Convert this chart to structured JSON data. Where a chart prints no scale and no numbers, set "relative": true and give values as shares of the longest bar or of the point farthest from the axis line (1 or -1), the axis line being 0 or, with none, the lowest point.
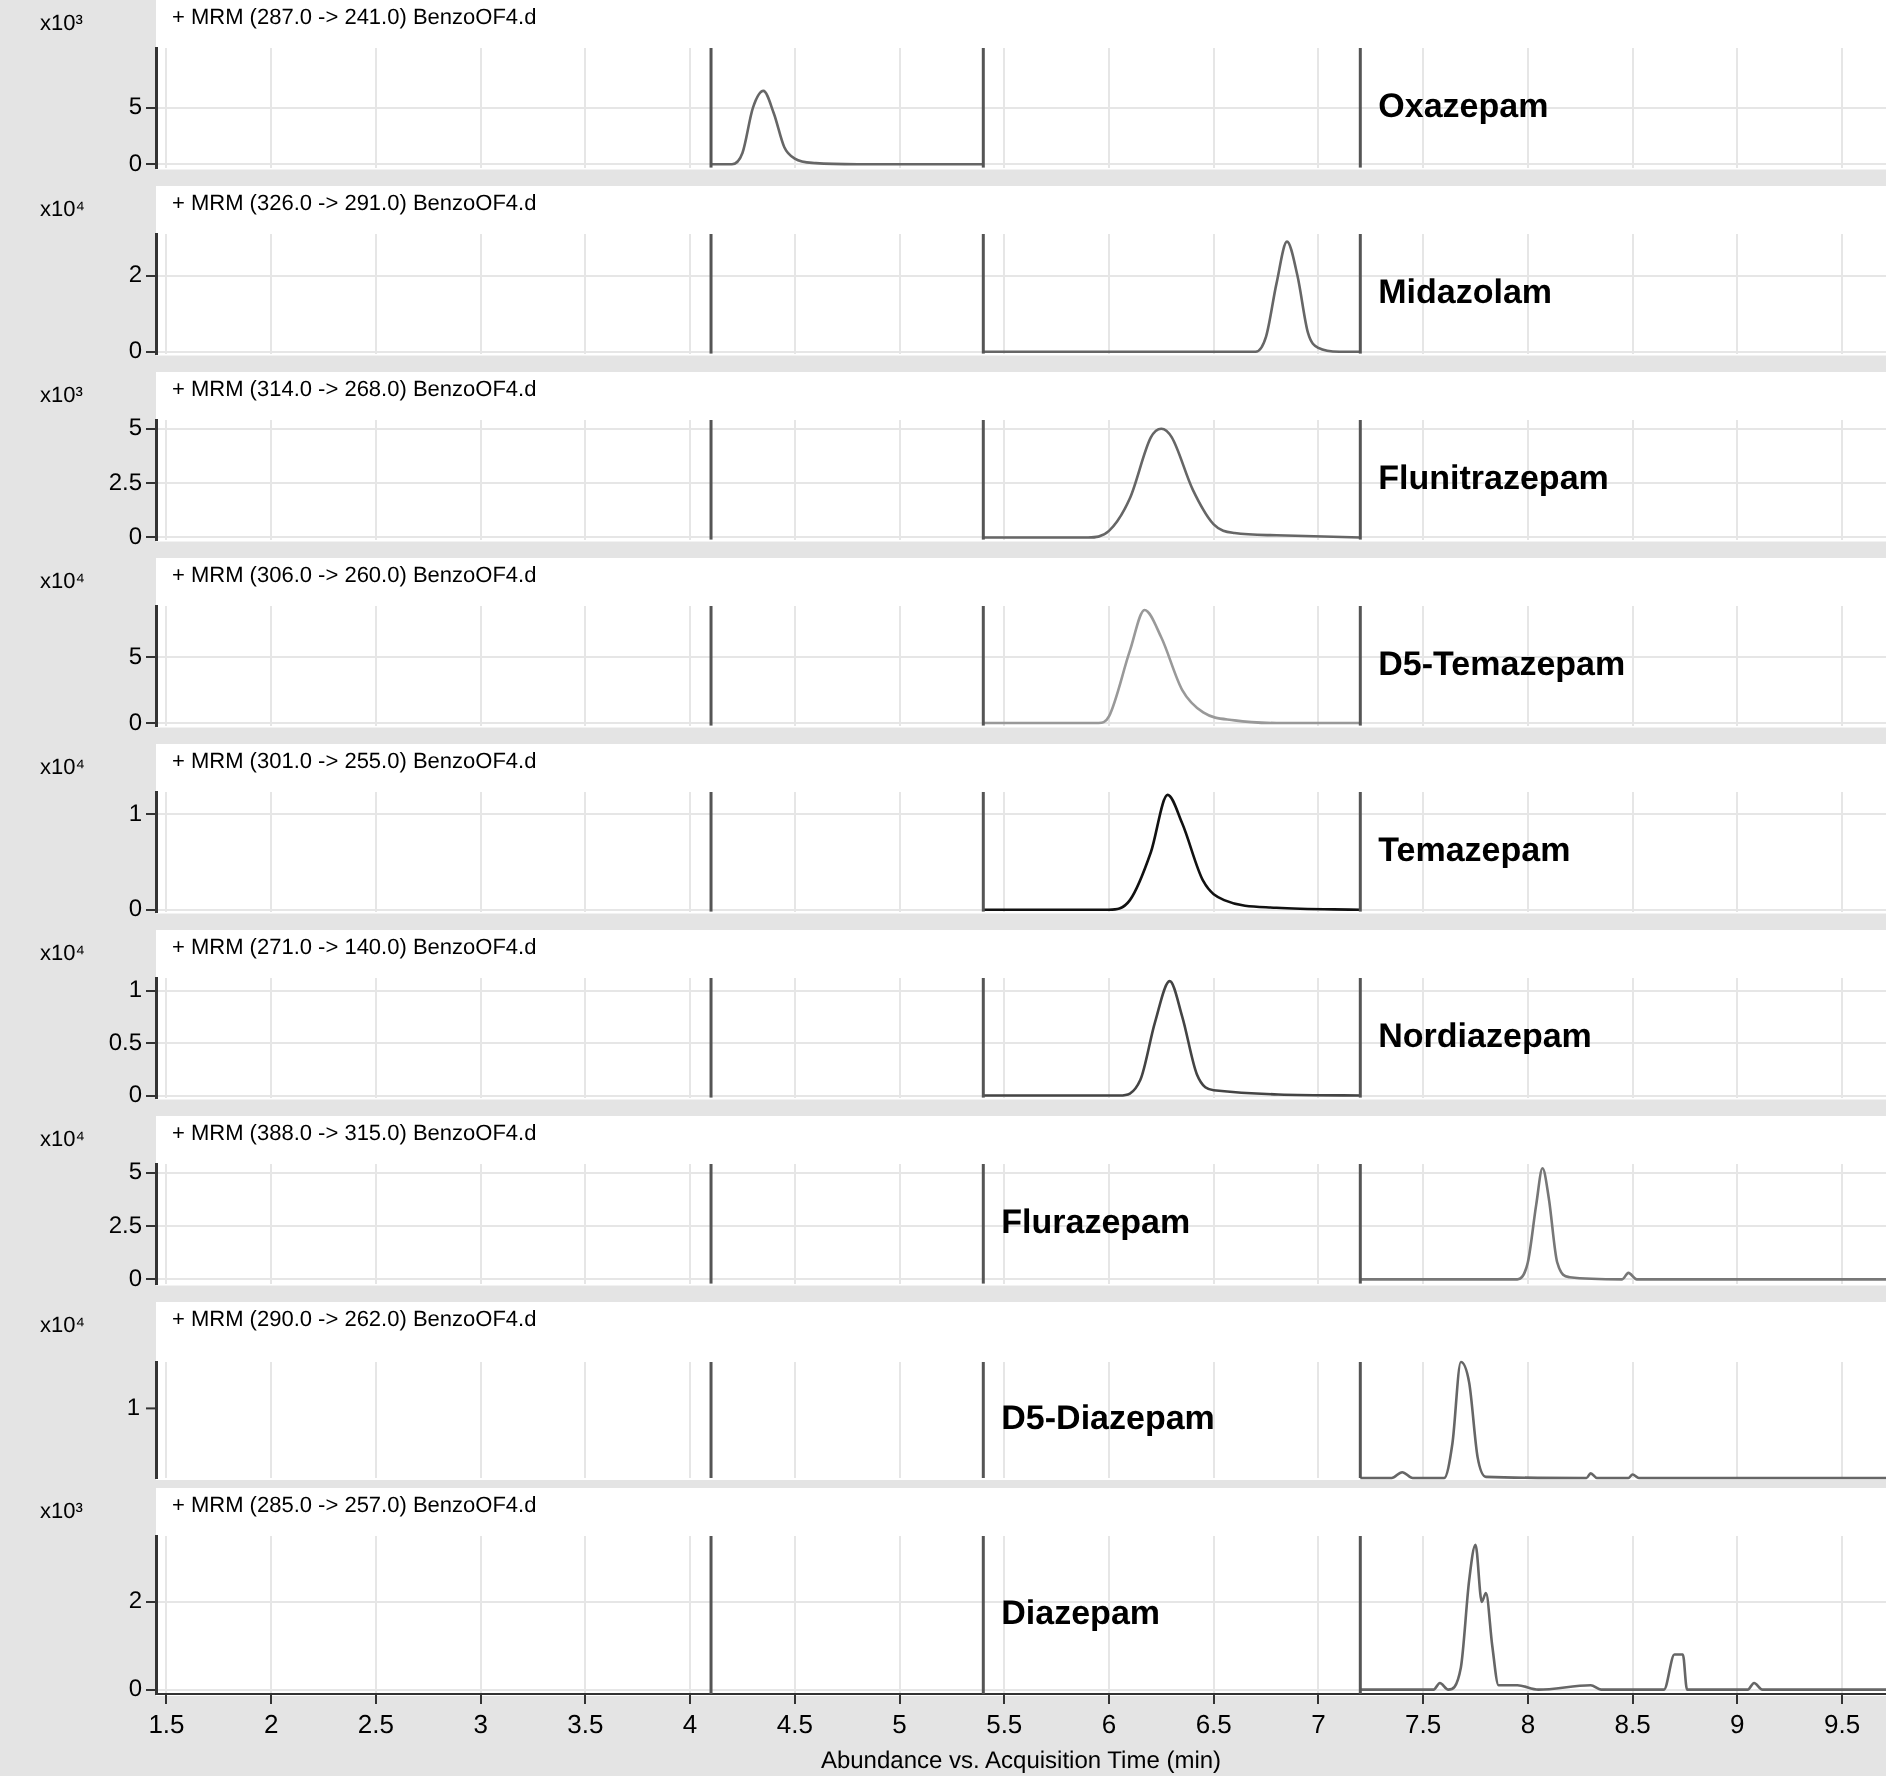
{
  "chart_data": [
    {
      "type": "line",
      "title": "+ MRM (287.0 -> 241.0) BenzoOF4.d",
      "ylabel": "x10³",
      "annotations": [
        "Oxazepam"
      ],
      "x": [
        4.1,
        4.2,
        4.25,
        4.3,
        4.35,
        4.4,
        4.45,
        4.5,
        4.6,
        4.8,
        5.4
      ],
      "series": [
        {
          "color": "#666666",
          "values": [
            0,
            0,
            1,
            5,
            6.5,
            4.5,
            1.5,
            0.5,
            0.1,
            0,
            0
          ]
        }
      ],
      "xlim": [
        1.45,
        9.71
      ],
      "xticks": [
        1.5,
        2,
        2.5,
        3,
        3.5,
        4,
        4.5,
        5,
        5.5,
        6,
        6.5,
        7,
        7.5,
        8,
        8.5,
        9,
        9.5
      ],
      "ylim": [
        -0.3,
        10.3
      ],
      "yticks": [
        0,
        5
      ],
      "grid": true,
      "tick_labels": "y",
      "marker": "none",
      "ref_lines": [
        {
          "axis": "x",
          "value": 4.1,
          "color": "#555555"
        },
        {
          "axis": "x",
          "value": 5.4,
          "color": "#555555"
        },
        {
          "axis": "x",
          "value": 7.2,
          "color": "#555555"
        }
      ]
    },
    {
      "type": "line",
      "title": "+ MRM (326.0 -> 291.0) BenzoOF4.d",
      "ylabel": "x10⁴",
      "annotations": [
        "Midazolam"
      ],
      "x": [
        5.4,
        6.7,
        6.75,
        6.8,
        6.85,
        6.9,
        6.95,
        7.0,
        7.1,
        7.2
      ],
      "series": [
        {
          "color": "#666666",
          "values": [
            0,
            0,
            0.4,
            1.8,
            2.9,
            2.0,
            0.5,
            0.1,
            0,
            0
          ]
        }
      ],
      "xlim": [
        1.45,
        9.71
      ],
      "xticks": [
        1.5,
        2,
        2.5,
        3,
        3.5,
        4,
        4.5,
        5,
        5.5,
        6,
        6.5,
        7,
        7.5,
        8,
        8.5,
        9,
        9.5
      ],
      "ylim": [
        -0.05,
        3.1
      ],
      "yticks": [
        0,
        2
      ],
      "grid": true,
      "tick_labels": "y",
      "marker": "none",
      "ref_lines": [
        {
          "axis": "x",
          "value": 4.1,
          "color": "#555555"
        },
        {
          "axis": "x",
          "value": 5.4,
          "color": "#555555"
        },
        {
          "axis": "x",
          "value": 7.2,
          "color": "#555555"
        }
      ]
    },
    {
      "type": "line",
      "title": "+ MRM (314.0 -> 268.0) BenzoOF4.d",
      "ylabel": "x10³",
      "annotations": [
        "Flunitrazepam"
      ],
      "x": [
        5.4,
        5.9,
        6.0,
        6.1,
        6.2,
        6.25,
        6.3,
        6.4,
        6.5,
        6.6,
        6.8,
        7.2
      ],
      "series": [
        {
          "color": "#666666",
          "values": [
            0,
            0,
            0.3,
            1.8,
            4.6,
            5.0,
            4.6,
            2.2,
            0.6,
            0.2,
            0.1,
            0
          ]
        }
      ],
      "xlim": [
        1.45,
        9.71
      ],
      "xticks": [
        1.5,
        2,
        2.5,
        3,
        3.5,
        4,
        4.5,
        5,
        5.5,
        6,
        6.5,
        7,
        7.5,
        8,
        8.5,
        9,
        9.5
      ],
      "ylim": [
        -0.1,
        5.4
      ],
      "yticks": [
        0,
        2.5,
        5
      ],
      "grid": true,
      "tick_labels": "y",
      "marker": "none",
      "ref_lines": [
        {
          "axis": "x",
          "value": 4.1,
          "color": "#555555"
        },
        {
          "axis": "x",
          "value": 5.4,
          "color": "#555555"
        },
        {
          "axis": "x",
          "value": 7.2,
          "color": "#555555"
        }
      ]
    },
    {
      "type": "line",
      "title": "+ MRM (306.0 -> 260.0) BenzoOF4.d",
      "ylabel": "x10⁴",
      "annotations": [
        "D5-Temazepam"
      ],
      "x": [
        5.4,
        5.95,
        6.0,
        6.1,
        6.17,
        6.25,
        6.35,
        6.45,
        6.6,
        6.8,
        7.2
      ],
      "series": [
        {
          "color": "#999999",
          "values": [
            0,
            0,
            0.5,
            5.5,
            8.6,
            6.5,
            2.5,
            0.8,
            0.2,
            0,
            0
          ]
        }
      ],
      "xlim": [
        1.45,
        9.71
      ],
      "xticks": [
        1.5,
        2,
        2.5,
        3,
        3.5,
        4,
        4.5,
        5,
        5.5,
        6,
        6.5,
        7,
        7.5,
        8,
        8.5,
        9,
        9.5
      ],
      "ylim": [
        -0.2,
        8.9
      ],
      "yticks": [
        0,
        5
      ],
      "grid": true,
      "tick_labels": "y",
      "marker": "none",
      "ref_lines": [
        {
          "axis": "x",
          "value": 4.1,
          "color": "#555555"
        },
        {
          "axis": "x",
          "value": 5.4,
          "color": "#555555"
        },
        {
          "axis": "x",
          "value": 7.2,
          "color": "#555555"
        }
      ]
    },
    {
      "type": "line",
      "title": "+ MRM (301.0 -> 255.0) BenzoOF4.d",
      "ylabel": "x10⁴",
      "annotations": [
        "Temazepam"
      ],
      "x": [
        5.4,
        6.0,
        6.1,
        6.2,
        6.28,
        6.35,
        6.45,
        6.55,
        6.8,
        7.2
      ],
      "series": [
        {
          "color": "#111111",
          "values": [
            0,
            0,
            0.1,
            0.6,
            1.2,
            0.9,
            0.3,
            0.1,
            0.02,
            0
          ]
        }
      ],
      "xlim": [
        1.45,
        9.71
      ],
      "xticks": [
        1.5,
        2,
        2.5,
        3,
        3.5,
        4,
        4.5,
        5,
        5.5,
        6,
        6.5,
        7,
        7.5,
        8,
        8.5,
        9,
        9.5
      ],
      "ylim": [
        -0.02,
        1.23
      ],
      "yticks": [
        0,
        1
      ],
      "grid": true,
      "tick_labels": "y",
      "marker": "none",
      "ref_lines": [
        {
          "axis": "x",
          "value": 4.1,
          "color": "#555555"
        },
        {
          "axis": "x",
          "value": 5.4,
          "color": "#555555"
        },
        {
          "axis": "x",
          "value": 7.2,
          "color": "#555555"
        }
      ]
    },
    {
      "type": "line",
      "title": "+ MRM (271.0 -> 140.0) BenzoOF4.d",
      "ylabel": "x10⁴",
      "annotations": [
        "Nordiazepam"
      ],
      "x": [
        5.4,
        6.05,
        6.15,
        6.22,
        6.29,
        6.35,
        6.42,
        6.5,
        7.2
      ],
      "series": [
        {
          "color": "#444444",
          "values": [
            0,
            0,
            0.15,
            0.7,
            1.09,
            0.75,
            0.2,
            0.05,
            0
          ]
        }
      ],
      "xlim": [
        1.45,
        9.71
      ],
      "xticks": [
        1.5,
        2,
        2.5,
        3,
        3.5,
        4,
        4.5,
        5,
        5.5,
        6,
        6.5,
        7,
        7.5,
        8,
        8.5,
        9,
        9.5
      ],
      "ylim": [
        -0.02,
        1.12
      ],
      "yticks": [
        0,
        0.5,
        1
      ],
      "grid": true,
      "tick_labels": "y",
      "marker": "none",
      "ref_lines": [
        {
          "axis": "x",
          "value": 4.1,
          "color": "#555555"
        },
        {
          "axis": "x",
          "value": 5.4,
          "color": "#555555"
        },
        {
          "axis": "x",
          "value": 7.2,
          "color": "#555555"
        }
      ]
    },
    {
      "type": "line",
      "title": "+ MRM (388.0 -> 315.0) BenzoOF4.d",
      "ylabel": "x10⁴",
      "annotations": [
        "Flurazepam"
      ],
      "x": [
        7.2,
        7.95,
        8.0,
        8.04,
        8.07,
        8.1,
        8.14,
        8.2,
        8.45,
        8.48,
        8.52,
        9.71
      ],
      "series": [
        {
          "color": "#777777",
          "values": [
            0,
            0,
            0.8,
            3.5,
            5.2,
            3.8,
            0.8,
            0.1,
            0,
            0.3,
            0,
            0
          ]
        }
      ],
      "xlim": [
        1.45,
        9.71
      ],
      "xticks": [
        1.5,
        2,
        2.5,
        3,
        3.5,
        4,
        4.5,
        5,
        5.5,
        6,
        6.5,
        7,
        7.5,
        8,
        8.5,
        9,
        9.5
      ],
      "ylim": [
        -0.2,
        5.4
      ],
      "yticks": [
        0,
        2.5,
        5
      ],
      "grid": true,
      "tick_labels": "y",
      "marker": "none",
      "ref_lines": [
        {
          "axis": "x",
          "value": 4.1,
          "color": "#555555"
        },
        {
          "axis": "x",
          "value": 5.4,
          "color": "#555555"
        },
        {
          "axis": "x",
          "value": 7.2,
          "color": "#555555"
        }
      ]
    },
    {
      "type": "line",
      "title": "+ MRM (290.0 -> 262.0) BenzoOF4.d",
      "ylabel": "x10⁴",
      "annotations": [
        "D5-Diazepam",
        "1"
      ],
      "x": [
        7.2,
        7.35,
        7.4,
        7.45,
        7.6,
        7.64,
        7.68,
        7.72,
        7.76,
        7.8,
        8.28,
        8.3,
        8.33,
        8.48,
        8.5,
        8.53,
        9.71
      ],
      "series": [
        {
          "color": "#666666",
          "values": [
            0,
            0,
            0.05,
            0,
            0,
            0.3,
            1,
            0.82,
            0.18,
            0.01,
            0,
            0.04,
            0,
            0,
            0.03,
            0,
            0
          ]
        }
      ],
      "xlim": [
        1.45,
        9.71
      ],
      "xticks": [
        1.5,
        2,
        2.5,
        3,
        3.5,
        4,
        4.5,
        5,
        5.5,
        6,
        6.5,
        7,
        7.5,
        8,
        8.5,
        9,
        9.5
      ],
      "relative": true,
      "grid": "x",
      "tick_labels": "y",
      "marker": "none",
      "ref_lines": [
        {
          "axis": "x",
          "value": 4.1,
          "color": "#555555"
        },
        {
          "axis": "x",
          "value": 5.4,
          "color": "#555555"
        },
        {
          "axis": "x",
          "value": 7.2,
          "color": "#555555"
        }
      ]
    },
    {
      "type": "line",
      "title": "+ MRM (285.0 -> 257.0) BenzoOF4.d",
      "ylabel": "x10³",
      "xlabel": "Abundance vs. Acquisition Time (min)",
      "annotations": [
        "Diazepam"
      ],
      "x": [
        7.2,
        7.55,
        7.58,
        7.62,
        7.68,
        7.72,
        7.75,
        7.78,
        7.8,
        7.83,
        7.86,
        7.95,
        8.05,
        8.3,
        8.35,
        8.65,
        8.7,
        8.74,
        8.76,
        9.05,
        9.08,
        9.12,
        9.71
      ],
      "series": [
        {
          "color": "#666666",
          "values": [
            0,
            0,
            0.15,
            0,
            0.5,
            2.5,
            3.3,
            2.0,
            2.2,
            1.0,
            0.1,
            0.1,
            0,
            0.1,
            0,
            0,
            0.8,
            0.8,
            0,
            0,
            0.15,
            0,
            0
          ]
        }
      ],
      "xlim": [
        1.45,
        9.71
      ],
      "xticks": [
        1.5,
        2,
        2.5,
        3,
        3.5,
        4,
        4.5,
        5,
        5.5,
        6,
        6.5,
        7,
        7.5,
        8,
        8.5,
        9,
        9.5
      ],
      "ylim": [
        -0.1,
        3.5
      ],
      "yticks": [
        0,
        2
      ],
      "grid": true,
      "marker": "none",
      "ref_lines": [
        {
          "axis": "x",
          "value": 4.1,
          "color": "#555555"
        },
        {
          "axis": "x",
          "value": 5.4,
          "color": "#555555"
        },
        {
          "axis": "x",
          "value": 7.2,
          "color": "#555555"
        }
      ]
    }
  ]
}
